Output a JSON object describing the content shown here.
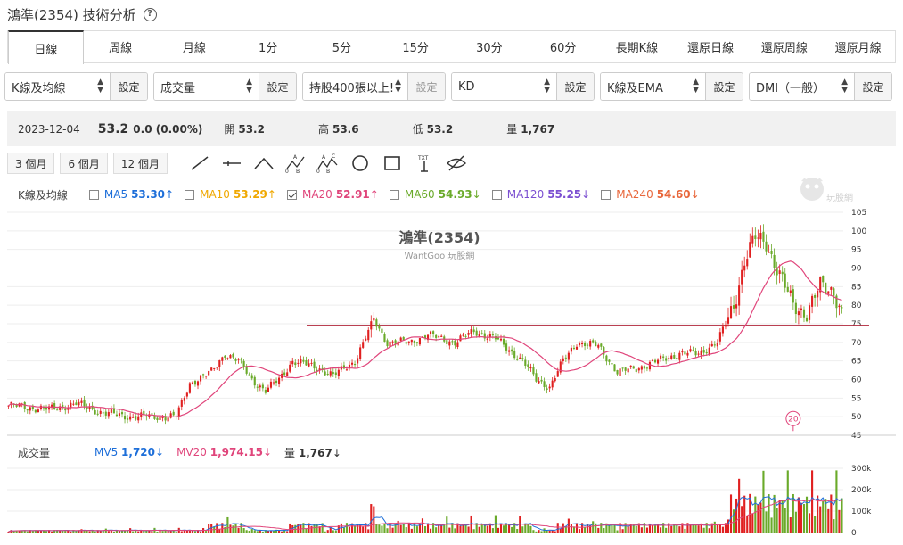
{
  "page_title": "鴻準(2354) 技術分析",
  "help_icon_label": "?",
  "tabs": [
    "日線",
    "周線",
    "月線",
    "1分",
    "5分",
    "15分",
    "30分",
    "60分",
    "長期K線",
    "還原日線",
    "還原周線",
    "還原月線"
  ],
  "active_tab": 0,
  "selectors": [
    {
      "value": "K線及均線",
      "button": "設定",
      "disabled": false
    },
    {
      "value": "成交量",
      "button": "設定",
      "disabled": false
    },
    {
      "value": "持股400張以上!",
      "button": "設定",
      "disabled": true
    },
    {
      "value": "KD",
      "button": "設定",
      "disabled": false
    },
    {
      "value": "K線及EMA",
      "button": "設定",
      "disabled": false
    },
    {
      "value": "DMI（一般）",
      "button": "設定",
      "disabled": false
    }
  ],
  "quote": {
    "date": "2023-12-04",
    "price": "53.2",
    "change": "0.0 (0.00%)",
    "open_label": "開",
    "open": "53.2",
    "high_label": "高",
    "high": "53.6",
    "low_label": "低",
    "low": "53.2",
    "volume_label": "量",
    "volume": "1,767"
  },
  "periods": [
    "3 個月",
    "6 個月",
    "12 個月"
  ],
  "tool_icons": [
    "trend-line-icon",
    "horizontal-line-icon",
    "angle-line-icon",
    "abc-pattern-icon",
    "abcd-pattern-icon",
    "circle-icon",
    "rectangle-icon",
    "text-icon",
    "hide-icon"
  ],
  "ma_legend": {
    "label": "K線及均線",
    "items": [
      {
        "name": "MA5",
        "value": "53.30",
        "arrow": "↑",
        "color": "#1e6fd9",
        "checked": false
      },
      {
        "name": "MA10",
        "value": "53.29",
        "arrow": "↑",
        "color": "#f0a800",
        "checked": false
      },
      {
        "name": "MA20",
        "value": "52.91",
        "arrow": "↑",
        "color": "#e0457b",
        "checked": true
      },
      {
        "name": "MA60",
        "value": "54.93",
        "arrow": "↓",
        "color": "#6aaa2a",
        "checked": false
      },
      {
        "name": "MA120",
        "value": "55.25",
        "arrow": "↓",
        "color": "#7b4fd1",
        "checked": false
      },
      {
        "name": "MA240",
        "value": "54.60",
        "arrow": "↓",
        "color": "#e8663a",
        "checked": false
      }
    ]
  },
  "logo_text": "玩股網",
  "vol_legend": {
    "label": "成交量",
    "items": [
      {
        "name": "MV5",
        "value": "1,720",
        "arrow": "↓",
        "color": "#1e6fd9"
      },
      {
        "name": "MV20",
        "value": "1,974.15",
        "arrow": "↓",
        "color": "#e0457b"
      },
      {
        "name": "量",
        "value": "1,767",
        "arrow": "↓",
        "color": "#333333"
      }
    ]
  },
  "colors": {
    "up": "#e02020",
    "down": "#6aaa2a",
    "ma20": "#e0457b",
    "mv5": "#1e6fd9",
    "mv20": "#e0457b",
    "hline": "#b0243a"
  },
  "chart_data": {
    "type": "candlestick",
    "title": "鴻準(2354)",
    "subtitle": "WantGoo 玩股網",
    "ylim": [
      45,
      105
    ],
    "yticks": [
      45,
      50,
      55,
      60,
      65,
      70,
      75,
      80,
      85,
      90,
      95,
      100,
      105
    ],
    "horizontal_line": 74.6,
    "marker_label": "20",
    "keypoints": [
      [
        0,
        53
      ],
      [
        15,
        52
      ],
      [
        25,
        53.5
      ],
      [
        35,
        51
      ],
      [
        45,
        50
      ],
      [
        55,
        50
      ],
      [
        62,
        50
      ],
      [
        67,
        59
      ],
      [
        75,
        62
      ],
      [
        80,
        67
      ],
      [
        85,
        65
      ],
      [
        90,
        60
      ],
      [
        95,
        57
      ],
      [
        100,
        60
      ],
      [
        105,
        65
      ],
      [
        115,
        63
      ],
      [
        120,
        61
      ],
      [
        128,
        65
      ],
      [
        135,
        76
      ],
      [
        140,
        70
      ],
      [
        148,
        70
      ],
      [
        155,
        72
      ],
      [
        165,
        70
      ],
      [
        172,
        73
      ],
      [
        180,
        71
      ],
      [
        185,
        68
      ],
      [
        190,
        65
      ],
      [
        195,
        60
      ],
      [
        200,
        58
      ],
      [
        205,
        65
      ],
      [
        210,
        70
      ],
      [
        218,
        69
      ],
      [
        225,
        62
      ],
      [
        232,
        63
      ],
      [
        240,
        65
      ],
      [
        248,
        67
      ],
      [
        255,
        67
      ],
      [
        262,
        70
      ],
      [
        268,
        80
      ],
      [
        272,
        92
      ],
      [
        276,
        98
      ],
      [
        280,
        97
      ],
      [
        285,
        88
      ],
      [
        290,
        80
      ],
      [
        295,
        78
      ],
      [
        300,
        85
      ],
      [
        305,
        84
      ],
      [
        308,
        78
      ]
    ],
    "volume_ylim": [
      0,
      300
    ],
    "volume_unit": "k",
    "volume_yticks": [
      0,
      100,
      200,
      300
    ],
    "volume_tick_labels": [
      "0",
      "100k",
      "200k",
      "300k"
    ]
  }
}
